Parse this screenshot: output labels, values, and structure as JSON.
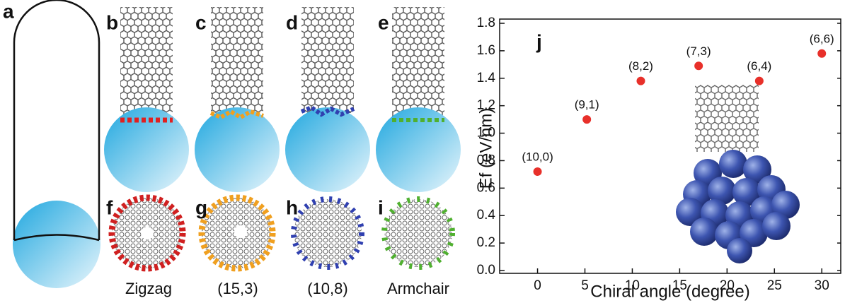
{
  "panels": [
    "a",
    "b",
    "c",
    "d",
    "e",
    "f",
    "g",
    "h",
    "i"
  ],
  "captions": [
    "Zigzag",
    "(15,3)",
    "(10,8)",
    "Armchair"
  ],
  "chart_data": {
    "type": "scatter",
    "title": "j",
    "xlabel": "Chiral angle (degree)",
    "ylabel": "Ef (eV/nm)",
    "x": [
      0,
      5.2,
      10.9,
      17.0,
      23.4,
      30
    ],
    "values": [
      0.72,
      1.1,
      1.38,
      1.49,
      1.38,
      1.58
    ],
    "point_labels": [
      "(10,0)",
      "(9,1)",
      "(8,2)",
      "(7,3)",
      "(6,4)",
      "(6,6)"
    ],
    "color": "#e8302a",
    "xlim": [
      -4,
      32
    ],
    "xticks": [
      0,
      5,
      10,
      15,
      20,
      25,
      30
    ],
    "ylim": [
      0,
      1.8
    ],
    "yticks": [
      {
        "value": 0,
        "label": "0.0"
      },
      0.2,
      0.4,
      0.6,
      0.8,
      {
        "value": 1,
        "label": "1.0"
      },
      1.2,
      1.4,
      1.6,
      1.8
    ]
  }
}
